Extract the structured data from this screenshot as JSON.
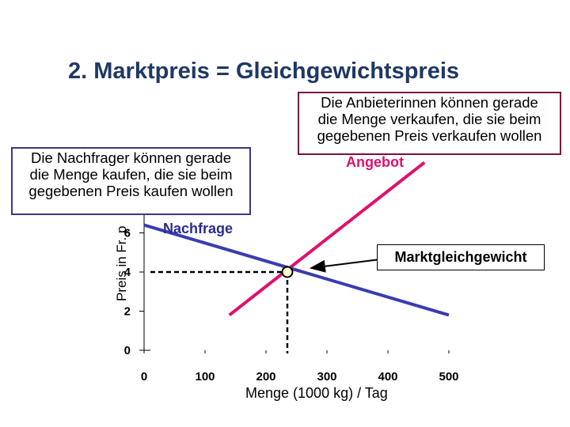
{
  "page": {
    "title": "2. Marktpreis = Gleichgewichtspreis",
    "callout_demand": [
      "Die Nachfrager können gerade",
      "die Menge kaufen, die sie beim",
      "gegebenen Preis kaufen wollen"
    ],
    "callout_supply": [
      "Die Anbieterinnen können gerade",
      "die Menge verkaufen, die sie beim",
      "gegebenen Preis verkaufen wollen"
    ],
    "equilibrium_label": "Marktgleichgewicht"
  },
  "chart_data": {
    "type": "line",
    "ylabel": "Preis in Fr. p",
    "xlabel": "Menge (1000 kg) / Tag",
    "x_ticks": [
      0,
      100,
      200,
      300,
      400,
      500
    ],
    "y_ticks": [
      0,
      2,
      4,
      6
    ],
    "xlim": [
      0,
      500
    ],
    "ylim": [
      0,
      8
    ],
    "series": [
      {
        "name": "Angebot",
        "color": "#e0106b",
        "points": [
          [
            140,
            1.8
          ],
          [
            460,
            9.6
          ]
        ]
      },
      {
        "name": "Nachfrage",
        "color": "#3a3cb0",
        "points": [
          [
            0,
            6.4
          ],
          [
            500,
            1.8
          ]
        ]
      }
    ],
    "equilibrium": {
      "x": 235,
      "y": 4
    }
  }
}
